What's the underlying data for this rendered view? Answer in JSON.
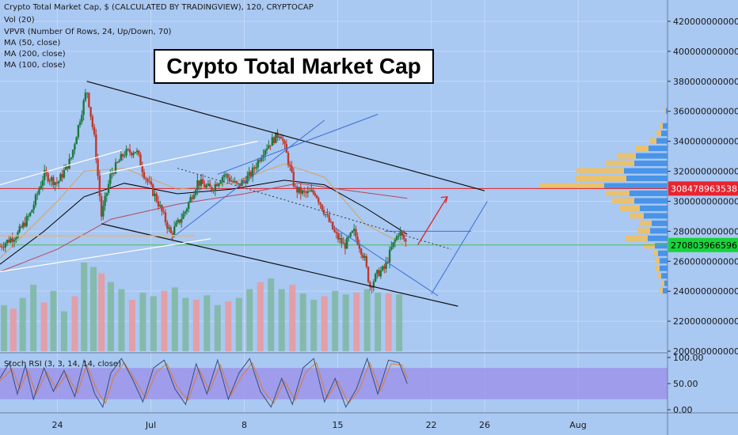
{
  "header": {
    "symbol_line": "Crypto Total Market Cap, $ (CALCULATED BY TRADINGVIEW), 120, CRYPTOCAP",
    "indicators": [
      "Vol (20)",
      "VPVR (Number Of Rows, 24, Up/Down, 70)",
      "MA (50, close)",
      "MA (200, close)",
      "MA (100, close)"
    ]
  },
  "annotation_title": "Crypto Total Market Cap",
  "colors": {
    "background": "#a9c8f2",
    "up_candle": "#1b7a3e",
    "down_candle": "#c0392b",
    "vol_up": "#7fb8a3",
    "vol_down": "#e89aa0",
    "ma50": "#d9a25a",
    "ma100": "#000000",
    "ma200": "#b5495b",
    "horizontal_red": "#e02020",
    "horizontal_green": "#45c05a",
    "rsi_band": "#9b8ee8",
    "price_tag_red": "#e8242f",
    "price_tag_green": "#18d33a",
    "vpvr_up": "#3d8ee8",
    "vpvr_down": "#f0c060"
  },
  "chart_data": {
    "type": "candlestick",
    "title": "Crypto Total Market Cap",
    "yaxis": {
      "range": [
        200000000000,
        430000000000
      ],
      "ticks": [
        {
          "value": 420000000000,
          "label": "420000000000"
        },
        {
          "value": 400000000000,
          "label": "400000000000"
        },
        {
          "value": 380000000000,
          "label": "380000000000"
        },
        {
          "value": 360000000000,
          "label": "360000000000"
        },
        {
          "value": 340000000000,
          "label": "340000000000"
        },
        {
          "value": 320000000000,
          "label": "320000000000"
        },
        {
          "value": 300000000000,
          "label": "300000000000"
        },
        {
          "value": 280000000000,
          "label": "280000000000"
        },
        {
          "value": 260000000000,
          "label": "260000000000"
        },
        {
          "value": 240000000000,
          "label": "240000000000"
        },
        {
          "value": 220000000000,
          "label": "220000000000"
        },
        {
          "value": 200000000000,
          "label": "200000000000"
        }
      ]
    },
    "xaxis": {
      "range_days": [
        -4.3,
        45.7
      ],
      "ticks": [
        {
          "day": 0,
          "label": "24"
        },
        {
          "day": 7,
          "label": "Jul"
        },
        {
          "day": 14,
          "label": "8"
        },
        {
          "day": 21,
          "label": "15"
        },
        {
          "day": 28,
          "label": "22"
        },
        {
          "day": 32,
          "label": "26"
        },
        {
          "day": 39,
          "label": "Aug"
        }
      ]
    },
    "price_path": [
      {
        "day": -4.3,
        "value": 270000000000
      },
      {
        "day": -3,
        "value": 278000000000
      },
      {
        "day": -2,
        "value": 292000000000
      },
      {
        "day": -1,
        "value": 318000000000
      },
      {
        "day": 0,
        "value": 312000000000
      },
      {
        "day": 1,
        "value": 328000000000
      },
      {
        "day": 2.2,
        "value": 375000000000
      },
      {
        "day": 2.8,
        "value": 340000000000
      },
      {
        "day": 3.3,
        "value": 290000000000
      },
      {
        "day": 4,
        "value": 318000000000
      },
      {
        "day": 5,
        "value": 332000000000
      },
      {
        "day": 5.9,
        "value": 334000000000
      },
      {
        "day": 6.5,
        "value": 318000000000
      },
      {
        "day": 7.5,
        "value": 300000000000
      },
      {
        "day": 8.5,
        "value": 278000000000
      },
      {
        "day": 9.5,
        "value": 292000000000
      },
      {
        "day": 10.5,
        "value": 313000000000
      },
      {
        "day": 11.5,
        "value": 308000000000
      },
      {
        "day": 12.5,
        "value": 318000000000
      },
      {
        "day": 13.5,
        "value": 310000000000
      },
      {
        "day": 14.5,
        "value": 318000000000
      },
      {
        "day": 15.5,
        "value": 335000000000
      },
      {
        "day": 16.7,
        "value": 346000000000
      },
      {
        "day": 17.2,
        "value": 330000000000
      },
      {
        "day": 17.8,
        "value": 308000000000
      },
      {
        "day": 18.5,
        "value": 305000000000
      },
      {
        "day": 19.3,
        "value": 306000000000
      },
      {
        "day": 20,
        "value": 293000000000
      },
      {
        "day": 20.8,
        "value": 278000000000
      },
      {
        "day": 21.5,
        "value": 270000000000
      },
      {
        "day": 22.2,
        "value": 280000000000
      },
      {
        "day": 23,
        "value": 262000000000
      },
      {
        "day": 23.4,
        "value": 243000000000
      },
      {
        "day": 24.0,
        "value": 252000000000
      },
      {
        "day": 24.5,
        "value": 255000000000
      },
      {
        "day": 25,
        "value": 268000000000
      },
      {
        "day": 25.6,
        "value": 280000000000
      },
      {
        "day": 26.2,
        "value": 271000000000
      }
    ],
    "ma50": [
      {
        "day": -4.3,
        "value": 262000000000
      },
      {
        "day": 0,
        "value": 300000000000
      },
      {
        "day": 2,
        "value": 320000000000
      },
      {
        "day": 5,
        "value": 322000000000
      },
      {
        "day": 9,
        "value": 308000000000
      },
      {
        "day": 13,
        "value": 312000000000
      },
      {
        "day": 17,
        "value": 325000000000
      },
      {
        "day": 20,
        "value": 316000000000
      },
      {
        "day": 23,
        "value": 285000000000
      },
      {
        "day": 26.2,
        "value": 270000000000
      }
    ],
    "ma100": [
      {
        "day": -4.3,
        "value": 258000000000
      },
      {
        "day": -1,
        "value": 280000000000
      },
      {
        "day": 2,
        "value": 303000000000
      },
      {
        "day": 5,
        "value": 312000000000
      },
      {
        "day": 9,
        "value": 305000000000
      },
      {
        "day": 13,
        "value": 308000000000
      },
      {
        "day": 17,
        "value": 314000000000
      },
      {
        "day": 20,
        "value": 311000000000
      },
      {
        "day": 23,
        "value": 296000000000
      },
      {
        "day": 26.2,
        "value": 278000000000
      }
    ],
    "ma200": [
      {
        "day": -4.3,
        "value": 253000000000
      },
      {
        "day": 0,
        "value": 268000000000
      },
      {
        "day": 4,
        "value": 288000000000
      },
      {
        "day": 9,
        "value": 298000000000
      },
      {
        "day": 14,
        "value": 305000000000
      },
      {
        "day": 18,
        "value": 312000000000
      },
      {
        "day": 22,
        "value": 307000000000
      },
      {
        "day": 26.2,
        "value": 302000000000
      }
    ],
    "volume_bars": [
      {
        "day": -4,
        "relative": 0.52
      },
      {
        "day": -3.3,
        "relative": 0.48
      },
      {
        "day": -2.6,
        "relative": 0.6
      },
      {
        "day": -1.8,
        "relative": 0.75
      },
      {
        "day": -1,
        "relative": 0.55
      },
      {
        "day": -0.3,
        "relative": 0.68
      },
      {
        "day": 0.5,
        "relative": 0.45
      },
      {
        "day": 1.3,
        "relative": 0.62
      },
      {
        "day": 2.0,
        "relative": 1.0
      },
      {
        "day": 2.7,
        "relative": 0.95
      },
      {
        "day": 3.3,
        "relative": 0.88
      },
      {
        "day": 4.0,
        "relative": 0.78
      },
      {
        "day": 4.8,
        "relative": 0.7
      },
      {
        "day": 5.6,
        "relative": 0.58
      },
      {
        "day": 6.4,
        "relative": 0.66
      },
      {
        "day": 7.2,
        "relative": 0.62
      },
      {
        "day": 8.0,
        "relative": 0.68
      },
      {
        "day": 8.8,
        "relative": 0.72
      },
      {
        "day": 9.6,
        "relative": 0.6
      },
      {
        "day": 10.4,
        "relative": 0.58
      },
      {
        "day": 11.2,
        "relative": 0.63
      },
      {
        "day": 12.0,
        "relative": 0.52
      },
      {
        "day": 12.8,
        "relative": 0.56
      },
      {
        "day": 13.6,
        "relative": 0.6
      },
      {
        "day": 14.4,
        "relative": 0.7
      },
      {
        "day": 15.2,
        "relative": 0.78
      },
      {
        "day": 16.0,
        "relative": 0.82
      },
      {
        "day": 16.8,
        "relative": 0.7
      },
      {
        "day": 17.6,
        "relative": 0.75
      },
      {
        "day": 18.4,
        "relative": 0.65
      },
      {
        "day": 19.2,
        "relative": 0.58
      },
      {
        "day": 20.0,
        "relative": 0.62
      },
      {
        "day": 20.8,
        "relative": 0.68
      },
      {
        "day": 21.6,
        "relative": 0.64
      },
      {
        "day": 22.4,
        "relative": 0.66
      },
      {
        "day": 23.2,
        "relative": 0.7
      },
      {
        "day": 24.0,
        "relative": 0.66
      },
      {
        "day": 24.8,
        "relative": 0.65
      },
      {
        "day": 25.6,
        "relative": 0.64
      }
    ],
    "vpvr_rows": [
      {
        "value": 240000000000,
        "up": 6,
        "down": 4
      },
      {
        "value": 245000000000,
        "up": 4,
        "down": 3
      },
      {
        "value": 250000000000,
        "up": 8,
        "down": 4
      },
      {
        "value": 255000000000,
        "up": 10,
        "down": 5
      },
      {
        "value": 260000000000,
        "up": 10,
        "down": 6
      },
      {
        "value": 265000000000,
        "up": 12,
        "down": 6
      },
      {
        "value": 270000000000,
        "up": 16,
        "down": 14
      },
      {
        "value": 275000000000,
        "up": 25,
        "down": 28
      },
      {
        "value": 280000000000,
        "up": 22,
        "down": 16
      },
      {
        "value": 285000000000,
        "up": 20,
        "down": 16
      },
      {
        "value": 290000000000,
        "up": 30,
        "down": 18
      },
      {
        "value": 295000000000,
        "up": 35,
        "down": 26
      },
      {
        "value": 300000000000,
        "up": 42,
        "down": 28
      },
      {
        "value": 305000000000,
        "up": 48,
        "down": 30
      },
      {
        "value": 310000000000,
        "up": 80,
        "down": 82
      },
      {
        "value": 315000000000,
        "up": 52,
        "down": 64
      },
      {
        "value": 320000000000,
        "up": 55,
        "down": 60
      },
      {
        "value": 325000000000,
        "up": 42,
        "down": 36
      },
      {
        "value": 330000000000,
        "up": 40,
        "down": 24
      },
      {
        "value": 335000000000,
        "up": 24,
        "down": 16
      },
      {
        "value": 340000000000,
        "up": 14,
        "down": 8
      },
      {
        "value": 345000000000,
        "up": 8,
        "down": 6
      },
      {
        "value": 350000000000,
        "up": 6,
        "down": 4
      },
      {
        "value": 360000000000,
        "up": 2,
        "down": 2
      }
    ],
    "drawings": {
      "channel_upper": [
        {
          "day": 2.2,
          "value": 380000000000
        },
        {
          "day": 32.0,
          "value": 307000000000
        }
      ],
      "channel_lower": [
        {
          "day": 3.3,
          "value": 285000000000
        },
        {
          "day": 30.0,
          "value": 230000000000
        }
      ],
      "white_lines": [
        [
          {
            "day": -4.3,
            "value": 311000000000
          },
          {
            "day": 4.8,
            "value": 334000000000
          }
        ],
        [
          {
            "day": -4.3,
            "value": 253000000000
          },
          {
            "day": 11.5,
            "value": 275000000000
          }
        ],
        [
          {
            "day": 3.3,
            "value": 318000000000
          },
          {
            "day": 15.0,
            "value": 340000000000
          }
        ]
      ],
      "blue_lines": [
        [
          {
            "day": 8.5,
            "value": 275000000000
          },
          {
            "day": 20.0,
            "value": 354000000000
          }
        ],
        [
          {
            "day": 12.0,
            "value": 318000000000
          },
          {
            "day": 24.0,
            "value": 358000000000
          }
        ],
        [
          {
            "day": 20.5,
            "value": 284000000000
          },
          {
            "day": 28.5,
            "value": 237000000000
          }
        ],
        [
          {
            "day": 24.5,
            "value": 280000000000
          },
          {
            "day": 31.0,
            "value": 280000000000
          }
        ],
        [
          {
            "day": 28.0,
            "value": 238000000000
          },
          {
            "day": 32.2,
            "value": 300000000000
          }
        ]
      ],
      "dotted_line": [
        {
          "day": 9.0,
          "value": 322000000000
        },
        {
          "day": 29.5,
          "value": 268000000000
        }
      ],
      "orange_line": [
        {
          "day": -4.3,
          "value": 277000000000
        },
        {
          "day": 10.3,
          "value": 277000000000
        }
      ],
      "red_arrow": [
        {
          "day": 27.0,
          "value": 271000000000
        },
        {
          "day": 29.2,
          "value": 303000000000
        }
      ],
      "horizontal_red": 308478963538,
      "horizontal_green": 270803966596
    },
    "price_tags": [
      {
        "label": "308478963538",
        "value": 308478963538,
        "color": "red"
      },
      {
        "label": "270803966596",
        "value": 270803966596,
        "color": "green"
      }
    ]
  },
  "rsi": {
    "label": "Stoch RSI (3, 3, 14, 14, close)",
    "ticks": [
      {
        "value": 100,
        "label": "100.00"
      },
      {
        "value": 50,
        "label": "50.00"
      },
      {
        "value": 0,
        "label": "0.00"
      }
    ],
    "band": [
      20,
      80
    ],
    "k": [
      {
        "day": -4.3,
        "value": 60
      },
      {
        "day": -3.6,
        "value": 90
      },
      {
        "day": -3.0,
        "value": 30
      },
      {
        "day": -2.4,
        "value": 85
      },
      {
        "day": -1.8,
        "value": 20
      },
      {
        "day": -1.0,
        "value": 80
      },
      {
        "day": -0.3,
        "value": 35
      },
      {
        "day": 0.5,
        "value": 75
      },
      {
        "day": 1.3,
        "value": 25
      },
      {
        "day": 2.0,
        "value": 95
      },
      {
        "day": 2.8,
        "value": 30
      },
      {
        "day": 3.4,
        "value": 5
      },
      {
        "day": 4.0,
        "value": 70
      },
      {
        "day": 4.8,
        "value": 98
      },
      {
        "day": 5.6,
        "value": 60
      },
      {
        "day": 6.4,
        "value": 15
      },
      {
        "day": 7.2,
        "value": 80
      },
      {
        "day": 8.0,
        "value": 95
      },
      {
        "day": 8.8,
        "value": 40
      },
      {
        "day": 9.6,
        "value": 10
      },
      {
        "day": 10.4,
        "value": 88
      },
      {
        "day": 11.2,
        "value": 30
      },
      {
        "day": 12.0,
        "value": 95
      },
      {
        "day": 12.8,
        "value": 20
      },
      {
        "day": 13.6,
        "value": 70
      },
      {
        "day": 14.4,
        "value": 98
      },
      {
        "day": 15.2,
        "value": 35
      },
      {
        "day": 16.0,
        "value": 5
      },
      {
        "day": 16.8,
        "value": 60
      },
      {
        "day": 17.6,
        "value": 10
      },
      {
        "day": 18.4,
        "value": 80
      },
      {
        "day": 19.2,
        "value": 98
      },
      {
        "day": 20.0,
        "value": 15
      },
      {
        "day": 20.8,
        "value": 60
      },
      {
        "day": 21.6,
        "value": 5
      },
      {
        "day": 22.4,
        "value": 40
      },
      {
        "day": 23.2,
        "value": 98
      },
      {
        "day": 24.0,
        "value": 30
      },
      {
        "day": 24.8,
        "value": 95
      },
      {
        "day": 25.6,
        "value": 90
      },
      {
        "day": 26.2,
        "value": 50
      }
    ],
    "d": [
      {
        "day": -4.3,
        "value": 55
      },
      {
        "day": -3.4,
        "value": 78
      },
      {
        "day": -2.8,
        "value": 40
      },
      {
        "day": -2.2,
        "value": 75
      },
      {
        "day": -1.6,
        "value": 30
      },
      {
        "day": -0.8,
        "value": 72
      },
      {
        "day": -0.1,
        "value": 40
      },
      {
        "day": 0.7,
        "value": 68
      },
      {
        "day": 1.5,
        "value": 32
      },
      {
        "day": 2.2,
        "value": 86
      },
      {
        "day": 3.0,
        "value": 35
      },
      {
        "day": 3.6,
        "value": 12
      },
      {
        "day": 4.2,
        "value": 62
      },
      {
        "day": 5.0,
        "value": 90
      },
      {
        "day": 5.8,
        "value": 58
      },
      {
        "day": 6.6,
        "value": 22
      },
      {
        "day": 7.4,
        "value": 72
      },
      {
        "day": 8.2,
        "value": 88
      },
      {
        "day": 9.0,
        "value": 42
      },
      {
        "day": 9.8,
        "value": 18
      },
      {
        "day": 10.6,
        "value": 78
      },
      {
        "day": 11.4,
        "value": 36
      },
      {
        "day": 12.2,
        "value": 86
      },
      {
        "day": 13.0,
        "value": 28
      },
      {
        "day": 13.8,
        "value": 64
      },
      {
        "day": 14.6,
        "value": 90
      },
      {
        "day": 15.4,
        "value": 38
      },
      {
        "day": 16.2,
        "value": 12
      },
      {
        "day": 17.0,
        "value": 55
      },
      {
        "day": 17.8,
        "value": 18
      },
      {
        "day": 18.6,
        "value": 72
      },
      {
        "day": 19.4,
        "value": 90
      },
      {
        "day": 20.2,
        "value": 22
      },
      {
        "day": 21.0,
        "value": 55
      },
      {
        "day": 21.8,
        "value": 12
      },
      {
        "day": 22.6,
        "value": 38
      },
      {
        "day": 23.4,
        "value": 90
      },
      {
        "day": 24.2,
        "value": 36
      },
      {
        "day": 25.0,
        "value": 88
      },
      {
        "day": 25.8,
        "value": 86
      },
      {
        "day": 26.2,
        "value": 60
      }
    ]
  }
}
